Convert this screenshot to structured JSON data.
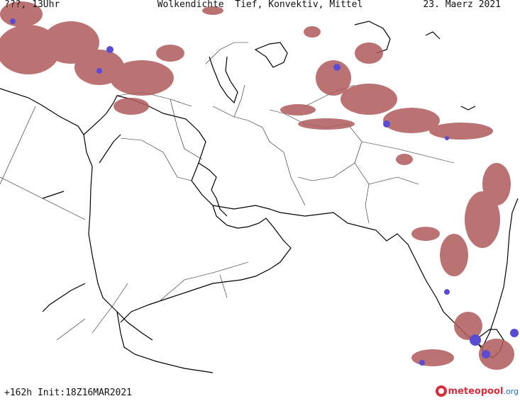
{
  "header": {
    "left": "???, 13Uhr",
    "title": "Wolkendichte  Tief, Konvektiv, Mittel",
    "date": "23. Maerz 2021"
  },
  "footer": {
    "run_info": "+162h Init:18Z16MAR2021"
  },
  "logo": {
    "name": "meteopool",
    "tld": ".org"
  },
  "colors": {
    "cloud_low": "#b05a5a",
    "cloud_mid": "#9b2e3a",
    "cloud_dense": "#5a4bd6",
    "coast": "#000000",
    "border": "#222222"
  }
}
